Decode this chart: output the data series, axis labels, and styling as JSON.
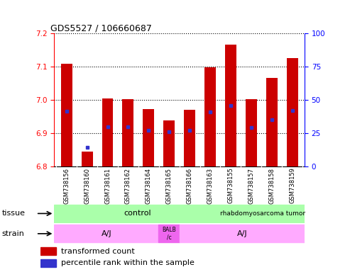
{
  "title": "GDS5527 / 106660687",
  "samples": [
    "GSM738156",
    "GSM738160",
    "GSM738161",
    "GSM738162",
    "GSM738164",
    "GSM738165",
    "GSM738166",
    "GSM738163",
    "GSM738155",
    "GSM738157",
    "GSM738158",
    "GSM738159"
  ],
  "bar_bottom": 6.8,
  "bar_top": [
    7.108,
    6.845,
    7.005,
    7.003,
    6.972,
    6.938,
    6.971,
    7.098,
    7.165,
    7.002,
    7.065,
    7.125
  ],
  "blue_pos": [
    6.965,
    6.857,
    6.92,
    6.92,
    6.908,
    6.905,
    6.908,
    6.963,
    6.983,
    6.918,
    6.94,
    6.968
  ],
  "ylim_left": [
    6.8,
    7.2
  ],
  "ylim_right": [
    0,
    100
  ],
  "yticks_left": [
    6.8,
    6.9,
    7.0,
    7.1,
    7.2
  ],
  "yticks_right": [
    0,
    25,
    50,
    75,
    100
  ],
  "bar_color": "#cc0000",
  "blue_color": "#3333cc",
  "tissue_label": "tissue",
  "strain_label": "strain",
  "control_color": "#aaffaa",
  "tumor_color": "#aaffaa",
  "strain_aj_color": "#ffaaff",
  "strain_balb_color": "#ee66ee",
  "label_bg": "#d0d0d0"
}
